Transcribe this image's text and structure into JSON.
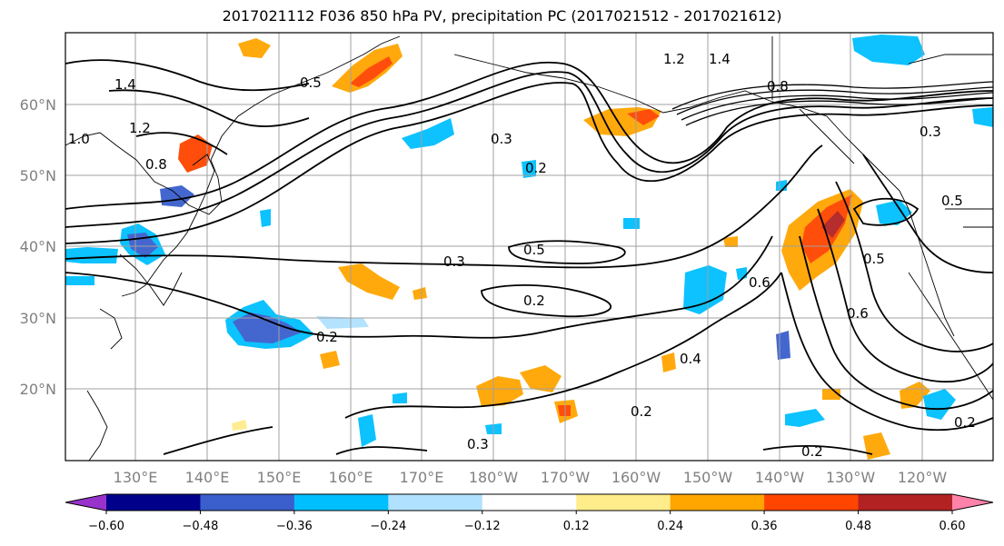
{
  "title": "2017021112 F036 850 hPa PV, precipitation PC (2017021512 - 2017021612)",
  "map": {
    "lat_labels": [
      "60°N",
      "50°N",
      "40°N",
      "30°N",
      "20°N"
    ],
    "lon_labels": [
      "130°E",
      "140°E",
      "150°E",
      "160°E",
      "170°E",
      "180°W",
      "170°W",
      "160°W",
      "150°W",
      "140°W",
      "130°W",
      "120°W"
    ],
    "contour_labels": [
      "1.4",
      "1.2",
      "1.0",
      "0.8",
      "0.5",
      "0.3",
      "0.2",
      "0.3",
      "0.5",
      "0.2",
      "0.2",
      "0.4",
      "0.2",
      "0.3",
      "0.2",
      "0.6",
      "0.5",
      "0.6",
      "0.3",
      "1.4",
      "1.2",
      "0.8",
      "0.5",
      "0.2"
    ]
  },
  "colorbar": {
    "ticks": [
      "−0.60",
      "−0.48",
      "−0.36",
      "−0.24",
      "−0.12",
      "0.12",
      "0.24",
      "0.36",
      "0.48",
      "0.60"
    ],
    "colors": [
      "#9932cc",
      "#00008b",
      "#3a5fcd",
      "#00bfff",
      "#b0e2ff",
      "#ffffff",
      "#ffec8b",
      "#ffa500",
      "#ff4500",
      "#b22222",
      "#ff82ab"
    ]
  },
  "colors": {
    "land_outline": "#000000",
    "grid": "#a0a0a0",
    "contour": "#000000"
  }
}
